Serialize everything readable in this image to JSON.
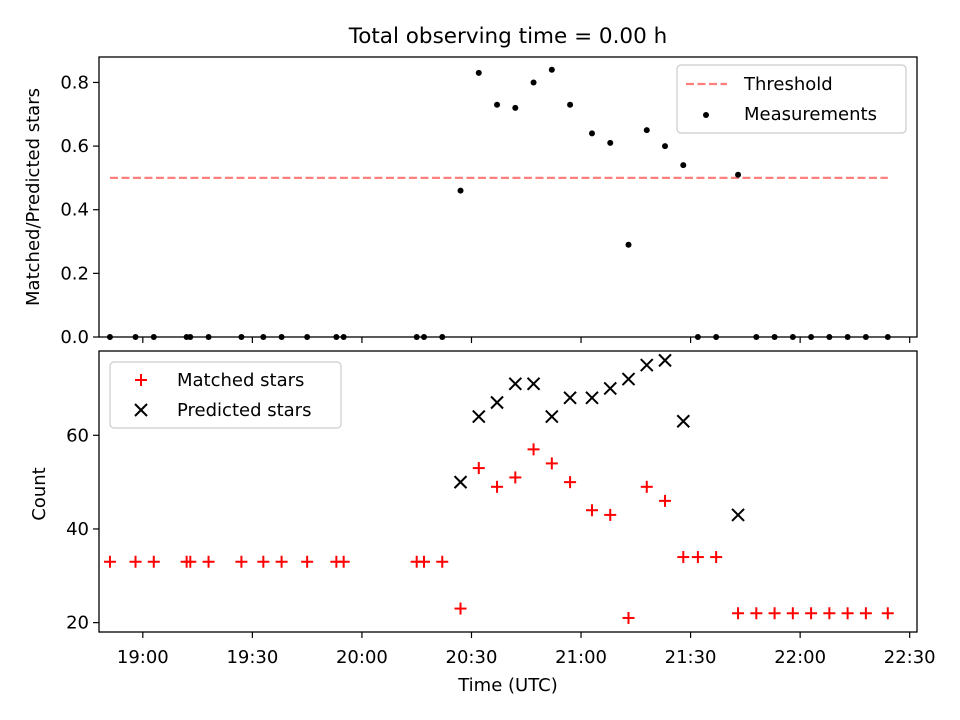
{
  "chart_data": [
    {
      "type": "scatter",
      "title": "Total observing time = 0.00 h",
      "xlabel": "",
      "ylabel": "Matched/Predicted stars",
      "ylim": [
        0,
        0.88
      ],
      "yticks": [
        "0.0",
        "0.2",
        "0.4",
        "0.6",
        "0.8"
      ],
      "legend": {
        "placement": "top-right",
        "entries": [
          "Threshold",
          "Measurements"
        ]
      },
      "series": [
        {
          "name": "Threshold",
          "kind": "dashed-line",
          "color": "#ff7f7f",
          "x": [
            "18:51",
            "22:24"
          ],
          "y": [
            0.5,
            0.5
          ]
        },
        {
          "name": "Measurements",
          "kind": "dot",
          "color": "#000000",
          "x": [
            "18:51",
            "18:58",
            "19:03",
            "19:12",
            "19:13",
            "19:18",
            "19:27",
            "19:33",
            "19:38",
            "19:45",
            "19:53",
            "19:55",
            "20:15",
            "20:17",
            "20:22",
            "20:27",
            "20:32",
            "20:37",
            "20:42",
            "20:47",
            "20:52",
            "20:57",
            "21:03",
            "21:08",
            "21:13",
            "21:18",
            "21:23",
            "21:28",
            "21:32",
            "21:37",
            "21:43",
            "21:48",
            "21:53",
            "21:58",
            "22:03",
            "22:08",
            "22:13",
            "22:18",
            "22:24"
          ],
          "y": [
            0,
            0,
            0,
            0,
            0,
            0,
            0,
            0,
            0,
            0,
            0,
            0,
            0,
            0,
            0,
            0.46,
            0.83,
            0.73,
            0.72,
            0.8,
            0.84,
            0.73,
            0.64,
            0.61,
            0.29,
            0.65,
            0.6,
            0.54,
            0,
            0,
            0.51,
            0,
            0,
            0,
            0,
            0,
            0,
            0,
            0
          ]
        }
      ]
    },
    {
      "type": "scatter",
      "title": "",
      "xlabel": "Time (UTC)",
      "ylabel": "Count",
      "ylim": [
        18,
        78
      ],
      "yticks": [
        "20",
        "40",
        "60"
      ],
      "xticks": [
        "19:00",
        "19:30",
        "20:00",
        "20:30",
        "21:00",
        "21:30",
        "22:00",
        "22:30"
      ],
      "xlim": [
        "18:48",
        "22:32"
      ],
      "legend": {
        "placement": "top-left",
        "entries": [
          "Matched stars",
          "Predicted stars"
        ]
      },
      "series": [
        {
          "name": "Matched stars",
          "kind": "plus",
          "color": "#ff0000",
          "x": [
            "18:51",
            "18:58",
            "19:03",
            "19:12",
            "19:13",
            "19:18",
            "19:27",
            "19:33",
            "19:38",
            "19:45",
            "19:53",
            "19:55",
            "20:15",
            "20:17",
            "20:22",
            "20:27",
            "20:32",
            "20:37",
            "20:42",
            "20:47",
            "20:52",
            "20:57",
            "21:03",
            "21:08",
            "21:13",
            "21:18",
            "21:23",
            "21:28",
            "21:32",
            "21:37",
            "21:43",
            "21:48",
            "21:53",
            "21:58",
            "22:03",
            "22:08",
            "22:13",
            "22:18",
            "22:24"
          ],
          "y": [
            33,
            33,
            33,
            33,
            33,
            33,
            33,
            33,
            33,
            33,
            33,
            33,
            33,
            33,
            33,
            23,
            53,
            49,
            51,
            57,
            54,
            50,
            44,
            43,
            21,
            49,
            46,
            34,
            34,
            34,
            22,
            22,
            22,
            22,
            22,
            22,
            22,
            22,
            22
          ]
        },
        {
          "name": "Predicted stars",
          "kind": "cross",
          "color": "#000000",
          "x": [
            "20:27",
            "20:32",
            "20:37",
            "20:42",
            "20:47",
            "20:52",
            "20:57",
            "21:03",
            "21:08",
            "21:13",
            "21:18",
            "21:23",
            "21:28",
            "21:43"
          ],
          "y": [
            50,
            64,
            67,
            71,
            71,
            64,
            68,
            68,
            70,
            72,
            75,
            76,
            63,
            43
          ]
        }
      ]
    }
  ]
}
